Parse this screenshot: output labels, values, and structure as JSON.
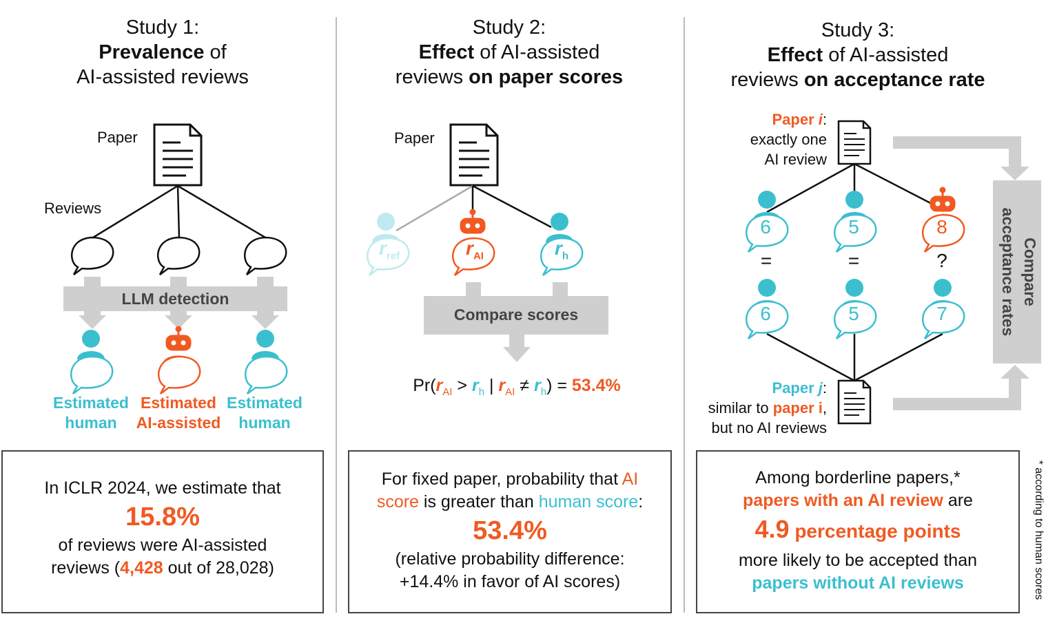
{
  "study1": {
    "title_line1": "Study 1:",
    "title_bold": "Prevalence",
    "title_rest": " of",
    "title_line3": "AI-assisted reviews",
    "paper_label": "Paper",
    "reviews_label": "Reviews",
    "detection_label": "LLM detection",
    "cap1_line1": "Estimated",
    "cap1_line2": "human",
    "cap2_line1": "Estimated",
    "cap2_line2": "AI-assisted",
    "cap3_line1": "Estimated",
    "cap3_line2": "human",
    "box_line1": "In ICLR 2024, we estimate that",
    "box_big": "15.8%",
    "box_line3": "of reviews were AI-assisted",
    "box_line4a": "reviews (",
    "box_line4_num": "4,428",
    "box_line4b": " out of 28,028)"
  },
  "study2": {
    "title_line1": "Study 2:",
    "title_bold1": "Effect",
    "title_rest1": " of AI-assisted",
    "title_rest2": "reviews ",
    "title_bold2": "on paper scores",
    "paper_label": "Paper",
    "r": "r",
    "ref": "ref",
    "ai": "AI",
    "h": "h",
    "compare_label": "Compare scores",
    "pr_prefix": "Pr(",
    "pr_gt": " > ",
    "pr_bar": " | ",
    "pr_ne": " ≠ ",
    "pr_eq": ") = ",
    "pr_value": "53.4%",
    "box_line1": "For fixed paper, probability that",
    "box_ai": "AI",
    "box_score": "score",
    "box_mid": " is greater than ",
    "box_human": "human score",
    "box_colon": ":",
    "box_big": "53.4%",
    "box_line4": "(relative probability difference:",
    "box_line5": "+14.4% in favor of AI scores)"
  },
  "study3": {
    "title_line1": "Study 3:",
    "title_bold1": "Effect",
    "title_rest1": " of AI-assisted",
    "title_rest2": "reviews ",
    "title_bold2": "on acceptance rate",
    "paper_i_label": "Paper ",
    "paper_i_var": "i",
    "paper_i_colon": ":",
    "paper_i_line2": "exactly one",
    "paper_i_line3": "AI review",
    "score_top": [
      "6",
      "5",
      "8"
    ],
    "eq_marks": [
      "=",
      "=",
      "?"
    ],
    "score_bottom": [
      "6",
      "5",
      "7"
    ],
    "paper_j_label": "Paper ",
    "paper_j_var": "j",
    "paper_j_colon": ":",
    "paper_j_line2a": "similar to ",
    "paper_j_line2b": "paper i",
    "paper_j_line2c": ",",
    "paper_j_line3": "but no AI reviews",
    "compare_label_line1": "Compare",
    "compare_label_line2": "acceptance rates",
    "box_line1": "Among borderline papers,*",
    "box_line2a": "papers with an AI review",
    "box_line2b": " are",
    "box_big_num": "4.9",
    "box_big_unit": " percentage points",
    "box_line4": "more likely to be accepted than",
    "box_line5": "papers without AI reviews",
    "footnote": "* according to human scores"
  },
  "colors": {
    "orange": "#f05a22",
    "teal": "#3bbfcf",
    "gray": "#cfcfcf"
  }
}
